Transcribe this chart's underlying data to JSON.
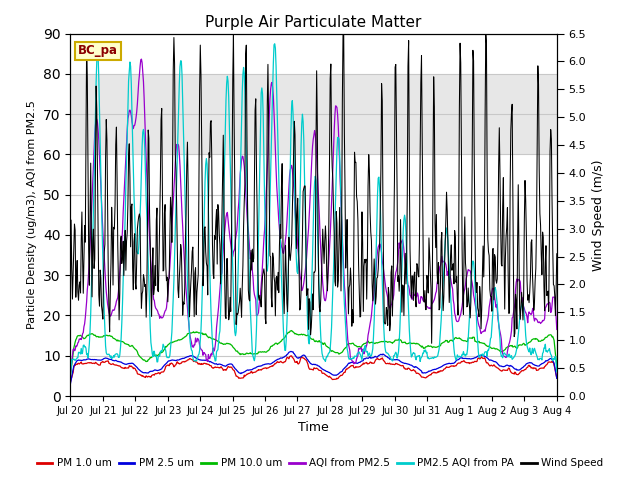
{
  "title": "Purple Air Particulate Matter",
  "xlabel": "Time",
  "ylabel_left": "Particle Density (ug/m3), AQI from PM2.5",
  "ylabel_right": "Wind Speed (m/s)",
  "ylim_left": [
    0,
    90
  ],
  "ylim_right": [
    0,
    6.5
  ],
  "yticks_left": [
    0,
    10,
    20,
    30,
    40,
    50,
    60,
    70,
    80,
    90
  ],
  "yticks_right": [
    0.0,
    0.5,
    1.0,
    1.5,
    2.0,
    2.5,
    3.0,
    3.5,
    4.0,
    4.5,
    5.0,
    5.5,
    6.0,
    6.5
  ],
  "station_label": "BC_pa",
  "colors": {
    "pm1": "#dd0000",
    "pm25": "#0000dd",
    "pm10": "#00bb00",
    "aqi_pm25": "#9900cc",
    "aqi_pa": "#00cccc",
    "wind": "#000000"
  },
  "legend_labels": [
    "PM 1.0 um",
    "PM 2.5 um",
    "PM 10.0 um",
    "AQI from PM2.5",
    "PM2.5 AQI from PA",
    "Wind Speed"
  ],
  "x_ticklabels": [
    "Jul 20",
    "Jul 21",
    "Jul 22",
    "Jul 23",
    "Jul 24",
    "Jul 25",
    "Jul 26",
    "Jul 27",
    "Jul 28",
    "Jul 29",
    "Jul 30",
    "Jul 31",
    "Aug 1",
    "Aug 2",
    "Aug 3",
    "Aug 4"
  ],
  "n_points": 720,
  "background_shade_low": 60,
  "background_shade_high": 80,
  "grid_color": "#c8c8c8",
  "fig_bg": "#ffffff"
}
